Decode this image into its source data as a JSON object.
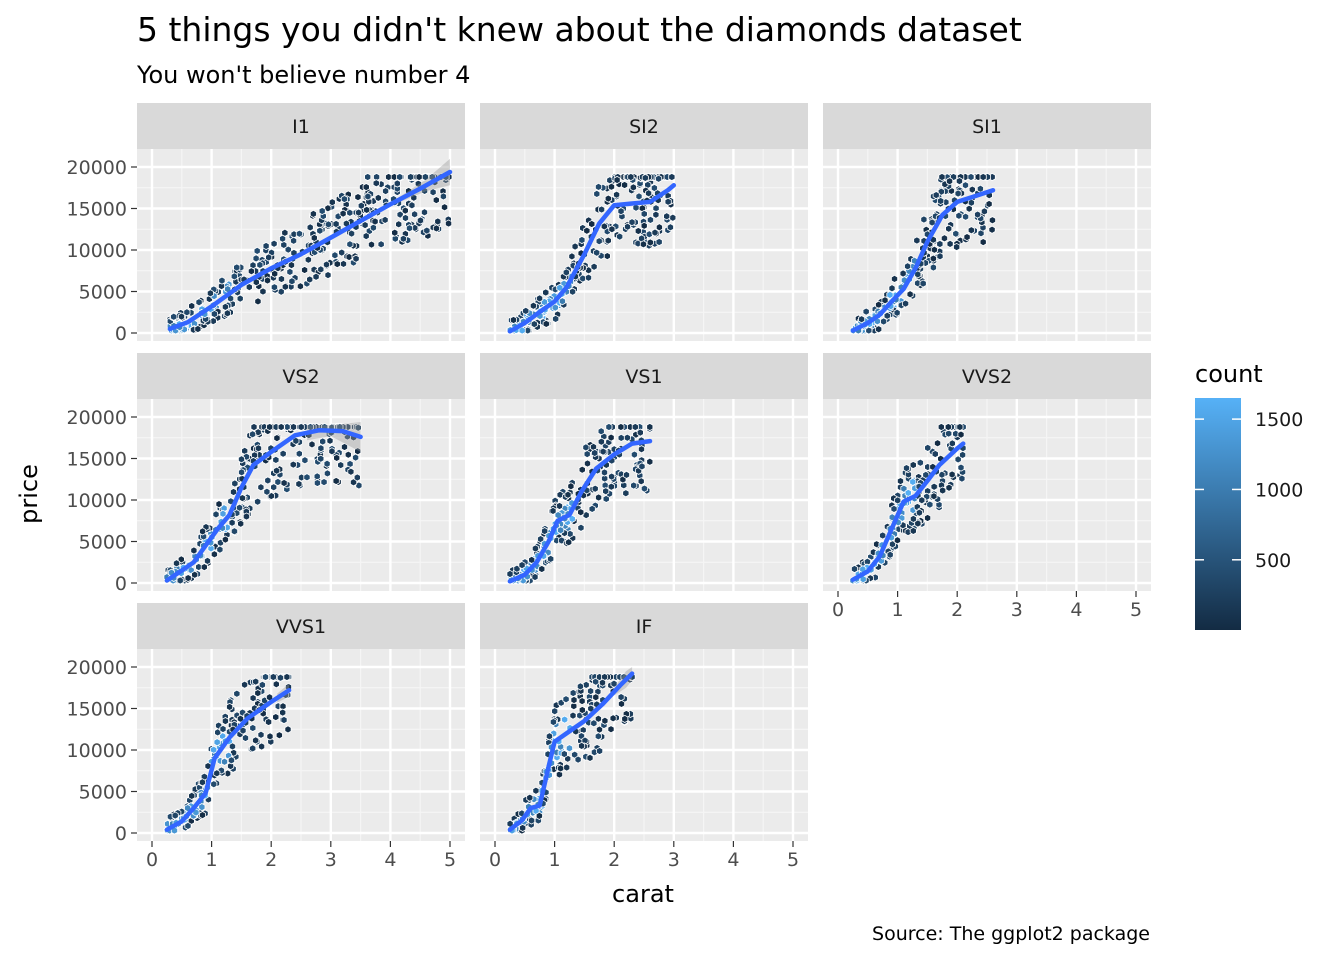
{
  "chart_data": {
    "type": "hexbin-facet",
    "title": "5 things you didn't knew about the diamonds dataset",
    "subtitle": "You won't believe number 4",
    "caption": "Source: The ggplot2 package",
    "xlabel": "carat",
    "ylabel": "price",
    "xlim": [
      0,
      5
    ],
    "ylim": [
      0,
      20000
    ],
    "x_ticks": [
      0,
      1,
      2,
      3,
      4,
      5
    ],
    "y_ticks": [
      0,
      5000,
      10000,
      15000,
      20000
    ],
    "x_tick_labels": [
      "0",
      "1",
      "2",
      "3",
      "4",
      "5"
    ],
    "y_tick_labels": [
      "0",
      "5000",
      "10000",
      "15000",
      "20000"
    ],
    "legend": {
      "title": "count",
      "min": 1,
      "max": 1650,
      "breaks": [
        500,
        1000,
        1500
      ],
      "break_labels": [
        "500",
        "1000",
        "1500"
      ],
      "low_color": "#132b43",
      "high_color": "#56b1f7"
    },
    "smooth_color": "#3366ff",
    "facets": [
      {
        "label": "I1",
        "max_carat": 5.0,
        "smooth": [
          [
            0.3,
            500
          ],
          [
            0.6,
            1300
          ],
          [
            1.0,
            3200
          ],
          [
            1.5,
            5800
          ],
          [
            2.0,
            7800
          ],
          [
            2.5,
            9500
          ],
          [
            3.0,
            11500
          ],
          [
            3.5,
            13500
          ],
          [
            4.0,
            15500
          ],
          [
            4.5,
            17400
          ],
          [
            5.0,
            19400
          ]
        ],
        "band": [
          [
            0.3,
            500
          ],
          [
            1.0,
            3200
          ],
          [
            2.0,
            7800
          ],
          [
            3.0,
            11500
          ],
          [
            4.0,
            15700
          ],
          [
            4.6,
            18500
          ],
          [
            5.0,
            21000
          ]
        ]
      },
      {
        "label": "SI2",
        "max_carat": 3.0,
        "smooth": [
          [
            0.25,
            200
          ],
          [
            0.5,
            1200
          ],
          [
            0.8,
            2800
          ],
          [
            1.0,
            3800
          ],
          [
            1.2,
            5500
          ],
          [
            1.5,
            9500
          ],
          [
            1.75,
            13200
          ],
          [
            2.0,
            15400
          ],
          [
            2.3,
            15600
          ],
          [
            2.6,
            15800
          ],
          [
            2.9,
            17200
          ],
          [
            3.0,
            17800
          ]
        ],
        "band": []
      },
      {
        "label": "SI1",
        "max_carat": 2.6,
        "smooth": [
          [
            0.25,
            300
          ],
          [
            0.5,
            1200
          ],
          [
            0.7,
            2200
          ],
          [
            0.9,
            3800
          ],
          [
            1.1,
            5300
          ],
          [
            1.3,
            7800
          ],
          [
            1.5,
            11000
          ],
          [
            1.75,
            14200
          ],
          [
            2.0,
            15800
          ],
          [
            2.3,
            16500
          ],
          [
            2.6,
            17200
          ]
        ],
        "band": []
      },
      {
        "label": "VS2",
        "max_carat": 3.5,
        "smooth": [
          [
            0.25,
            300
          ],
          [
            0.5,
            1500
          ],
          [
            0.7,
            2500
          ],
          [
            0.9,
            4500
          ],
          [
            1.1,
            6500
          ],
          [
            1.3,
            8200
          ],
          [
            1.5,
            11500
          ],
          [
            1.7,
            14200
          ],
          [
            2.0,
            15800
          ],
          [
            2.4,
            17800
          ],
          [
            2.8,
            18400
          ],
          [
            3.2,
            18300
          ],
          [
            3.5,
            17600
          ]
        ],
        "band": [
          [
            2.6,
            19000
          ],
          [
            3.0,
            19000
          ],
          [
            3.5,
            19400
          ]
        ]
      },
      {
        "label": "VS1",
        "max_carat": 2.6,
        "smooth": [
          [
            0.25,
            200
          ],
          [
            0.5,
            1000
          ],
          [
            0.7,
            2500
          ],
          [
            0.9,
            5000
          ],
          [
            1.05,
            7500
          ],
          [
            1.25,
            8200
          ],
          [
            1.45,
            11000
          ],
          [
            1.7,
            13800
          ],
          [
            2.0,
            15500
          ],
          [
            2.3,
            16800
          ],
          [
            2.6,
            17100
          ]
        ],
        "band": []
      },
      {
        "label": "VVS2",
        "max_carat": 2.1,
        "smooth": [
          [
            0.25,
            400
          ],
          [
            0.5,
            1400
          ],
          [
            0.7,
            3200
          ],
          [
            0.9,
            6500
          ],
          [
            1.1,
            9800
          ],
          [
            1.3,
            10500
          ],
          [
            1.5,
            12300
          ],
          [
            1.7,
            14200
          ],
          [
            2.0,
            16200
          ],
          [
            2.1,
            16800
          ]
        ],
        "band": []
      },
      {
        "label": "VVS1",
        "max_carat": 2.3,
        "smooth": [
          [
            0.25,
            400
          ],
          [
            0.5,
            1400
          ],
          [
            0.7,
            3000
          ],
          [
            0.9,
            4800
          ],
          [
            1.05,
            9000
          ],
          [
            1.3,
            11500
          ],
          [
            1.6,
            13800
          ],
          [
            2.0,
            15800
          ],
          [
            2.3,
            17200
          ]
        ],
        "band": [
          [
            2.1,
            16800
          ],
          [
            2.3,
            18000
          ]
        ]
      },
      {
        "label": "IF",
        "max_carat": 2.3,
        "smooth": [
          [
            0.25,
            400
          ],
          [
            0.45,
            1500
          ],
          [
            0.6,
            3000
          ],
          [
            0.75,
            3300
          ],
          [
            0.9,
            8000
          ],
          [
            1.0,
            11000
          ],
          [
            1.2,
            12000
          ],
          [
            1.5,
            13500
          ],
          [
            1.8,
            15500
          ],
          [
            2.1,
            17800
          ],
          [
            2.3,
            19200
          ]
        ],
        "band": [
          [
            2.0,
            17500
          ],
          [
            2.2,
            19500
          ],
          [
            2.3,
            20000
          ]
        ]
      }
    ]
  }
}
